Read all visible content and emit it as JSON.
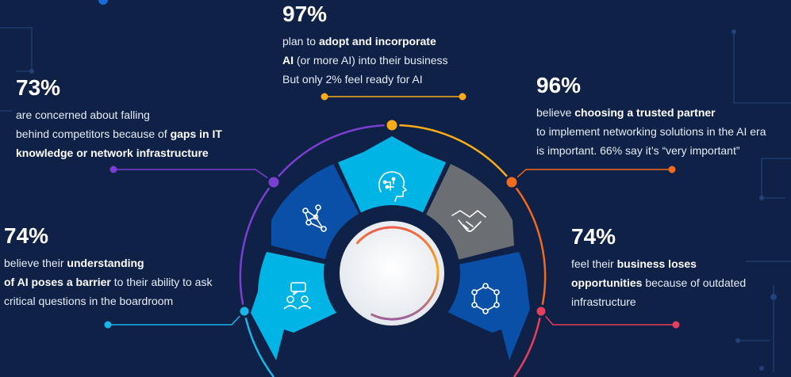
{
  "colors": {
    "background": "#0f2147",
    "segment_light": "#00b5e6",
    "segment_dark": "#0a4fa8",
    "segment_gray": "#6b6e73",
    "purple": "#7a3fd1",
    "orange": "#f26a1b",
    "yellow": "#fbab18",
    "red": "#e63e5c",
    "cyan": "#19b6e9"
  },
  "icons": {
    "top": "brain-circuit-icon",
    "left_upper": "network-nodes-icon",
    "left_lower": "people-chat-icon",
    "right_upper": "handshake-icon",
    "right_lower": "hexagon-network-icon"
  },
  "stats": {
    "top": {
      "percent": "97%",
      "l1_a": "plan to ",
      "l1_b": "adopt and incorporate",
      "l2_a": "AI",
      "l2_b": " (or more AI) into their business",
      "l3": "But only 2% feel ready for AI"
    },
    "left_upper": {
      "percent": "73%",
      "l1": "are concerned about falling",
      "l2_a": "behind competitors because of ",
      "l2_b": "gaps in IT",
      "l3_b": "knowledge or network infrastructure"
    },
    "left_lower": {
      "percent": "74%",
      "l1_a": "believe their ",
      "l1_b": "understanding",
      "l2_b": "of AI poses a barrier",
      "l2_c": " to their ability to ask",
      "l3": "critical questions in the boardroom"
    },
    "right_upper": {
      "percent": "96%",
      "l1_a": "believe ",
      "l1_b": "choosing a trusted partner",
      "l2": "to implement networking solutions in the AI era",
      "l3": "is important. 66% say it’s “very important”"
    },
    "right_lower": {
      "percent": "74%",
      "l1_a": "feel their ",
      "l1_b": "business loses",
      "l2_b": "opportunities",
      "l2_c": " because of outdated",
      "l3": "infrastructure"
    }
  }
}
